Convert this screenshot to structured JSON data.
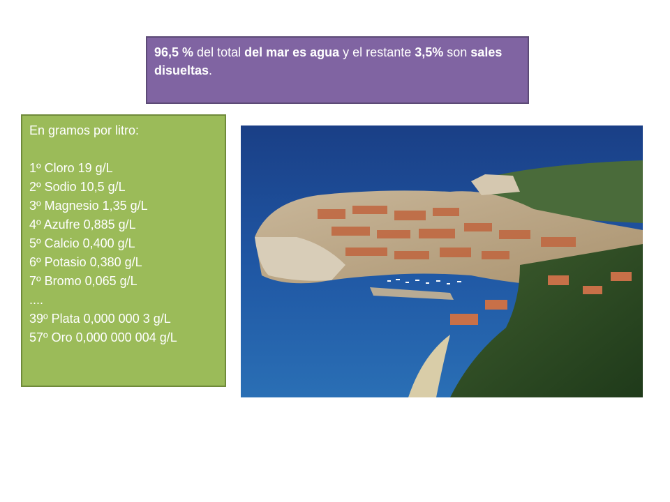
{
  "callout": {
    "part1": "96,5 %",
    "part2": " del total ",
    "part3": "del mar es agua",
    "part4": " y el restante ",
    "part5": "3,5%",
    "part6": " son ",
    "part7": "sales disueltas",
    "part8": "."
  },
  "list": {
    "heading": "En gramos por litro:",
    "items": [
      "1º Cloro 19 g/L",
      "2º Sodio 10,5 g/L",
      "3º Magnesio 1,35 g/L",
      "4º Azufre 0,885 g/L",
      "5º Calcio 0,400 g/L",
      "6º Potasio 0,380 g/L",
      "7º Bromo 0,065 g/L",
      "....",
      "39º Plata 0,000 000 3 g/L",
      "57º Oro 0,000 000 004 g/L"
    ]
  },
  "colors": {
    "purple": "#8064a2",
    "green": "#9bbb59",
    "sea": "#1d4f9a"
  },
  "photo": {
    "subject": "aerial-coastal-walled-town"
  }
}
